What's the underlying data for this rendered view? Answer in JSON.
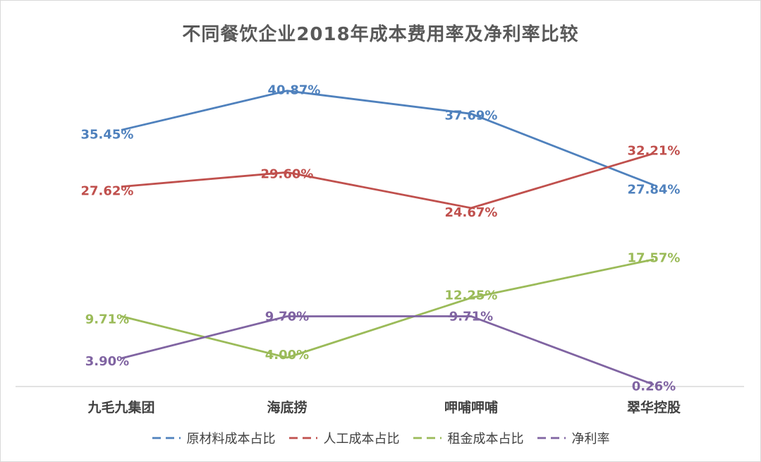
{
  "chart_data": {
    "type": "line",
    "title": "不同餐饮企业2018年成本费用率及净利率比较",
    "categories": [
      "九毛九集团",
      "海底捞",
      "呷哺呷哺",
      "翠华控股"
    ],
    "series": [
      {
        "name": "原材料成本占比",
        "color": "#4f81bd",
        "values": [
          35.45,
          40.87,
          37.69,
          27.84
        ],
        "labels": [
          "35.45%",
          "40.87%",
          "37.69%",
          "27.84%"
        ]
      },
      {
        "name": "人工成本占比",
        "color": "#c0504d",
        "values": [
          27.62,
          29.6,
          24.67,
          32.21
        ],
        "labels": [
          "27.62%",
          "29.60%",
          "24.67%",
          "32.21%"
        ]
      },
      {
        "name": "租金成本占比",
        "color": "#9bbb59",
        "values": [
          9.71,
          4.0,
          12.25,
          17.57
        ],
        "labels": [
          "9.71%",
          "4.00%",
          "12.25%",
          "17.57%"
        ]
      },
      {
        "name": "净利率",
        "color": "#8064a2",
        "values": [
          3.9,
          9.7,
          9.71,
          0.26
        ],
        "labels": [
          "3.90%",
          "9.70%",
          "9.71%",
          "0.26%"
        ]
      }
    ],
    "ylim": [
      0,
      44
    ],
    "grid": false,
    "legend_position": "bottom"
  }
}
